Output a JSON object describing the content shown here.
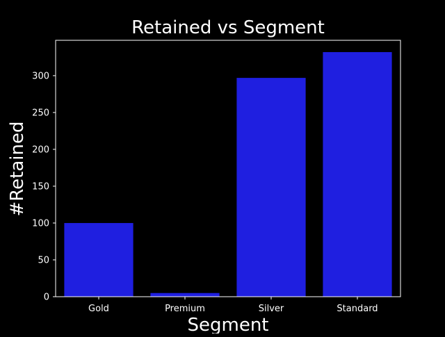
{
  "chart_data": {
    "type": "bar",
    "title": "Retained vs Segment",
    "xlabel": "Segment",
    "ylabel": "#Retained",
    "categories": [
      "Gold",
      "Premium",
      "Silver",
      "Standard"
    ],
    "values": [
      100,
      5,
      297,
      332
    ],
    "ylim": [
      0,
      348
    ],
    "yticks": [
      0,
      50,
      100,
      150,
      200,
      250,
      300
    ],
    "grid": false,
    "colors": {
      "background": "#000000",
      "bar": "#1f1fe0",
      "text": "#ffffff",
      "axis": "#ffffff"
    }
  }
}
